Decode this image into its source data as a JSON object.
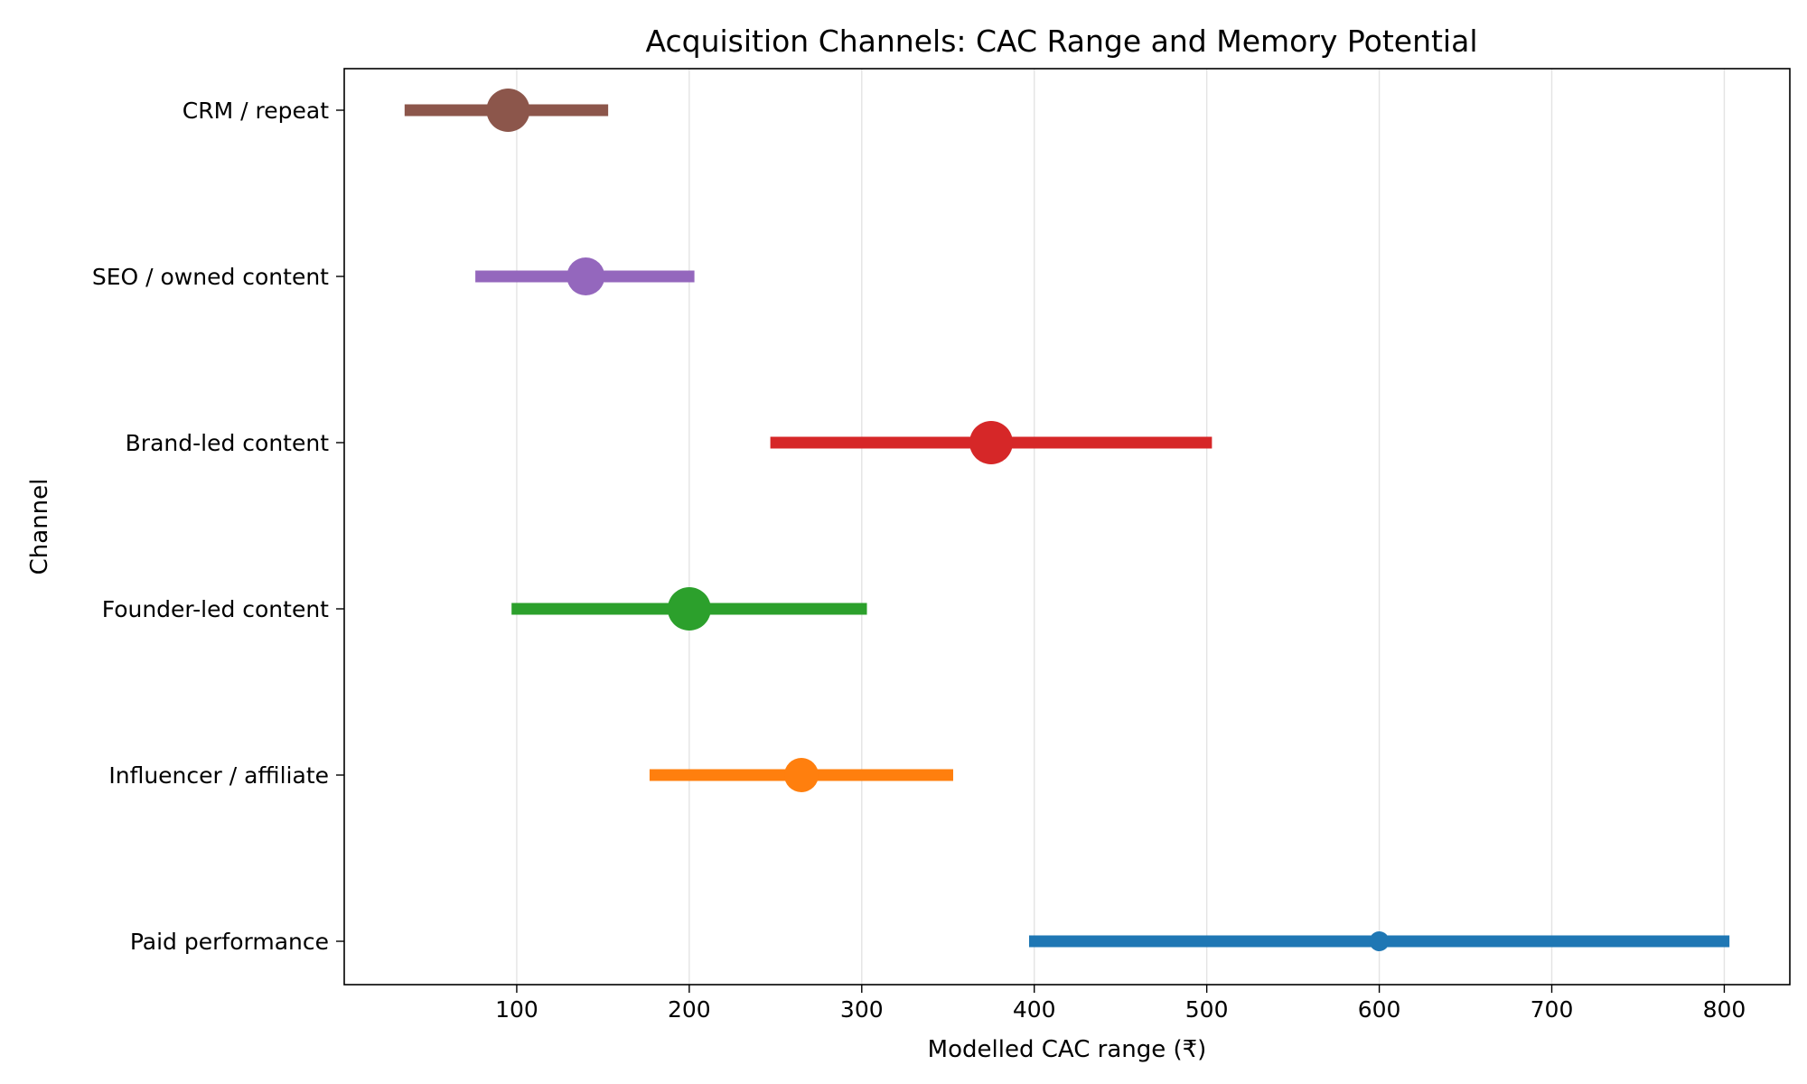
{
  "chart_data": {
    "type": "range",
    "title": "Acquisition Channels: CAC Range and Memory Potential",
    "xlabel": "Modelled CAC range (₹)",
    "ylabel": "Channel",
    "xlim": [
      0,
      838
    ],
    "xticks": [
      100,
      200,
      300,
      400,
      500,
      600,
      700,
      800
    ],
    "grid": "x",
    "rows": [
      {
        "channel": "Paid performance",
        "low": 397,
        "high": 803,
        "point": 600,
        "marker": "small",
        "color": "#1f77b4"
      },
      {
        "channel": "Influencer / affiliate",
        "low": 177,
        "high": 353,
        "point": 265,
        "marker": "medium",
        "color": "#ff7f0e"
      },
      {
        "channel": "Founder-led content",
        "low": 97,
        "high": 303,
        "point": 200,
        "marker": "large",
        "color": "#2ca02c"
      },
      {
        "channel": "Brand-led content",
        "low": 247,
        "high": 503,
        "point": 375,
        "marker": "large",
        "color": "#d62728"
      },
      {
        "channel": "SEO / owned content",
        "low": 76,
        "high": 203,
        "point": 140,
        "marker": "medium-large",
        "color": "#9467bd"
      },
      {
        "channel": "CRM / repeat",
        "low": 35,
        "high": 153,
        "point": 95,
        "marker": "large",
        "color": "#8c564b"
      }
    ]
  }
}
